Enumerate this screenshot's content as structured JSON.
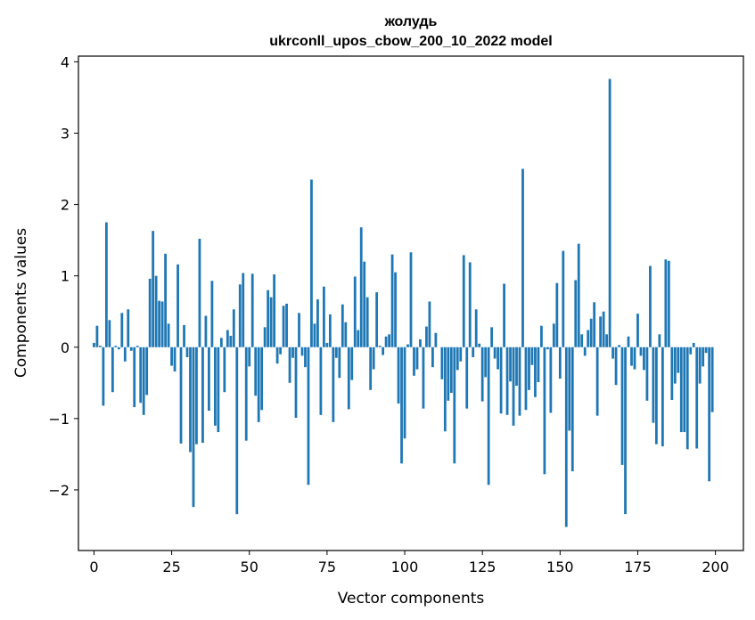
{
  "chart_data": {
    "type": "bar",
    "title": "жолудь",
    "subtitle": "ukrconll_upos_cbow_200_10_2022 model",
    "xlabel": "Vector components",
    "ylabel": "Components values",
    "xlim": [
      -5,
      209
    ],
    "ylim": [
      -2.85,
      4.08
    ],
    "xticks": [
      0,
      25,
      50,
      75,
      100,
      125,
      150,
      175,
      200
    ],
    "yticks": [
      -2,
      -1,
      0,
      1,
      2,
      3,
      4
    ],
    "bar_color": "#1f77b4",
    "values": [
      0.06,
      0.3,
      0.02,
      -0.82,
      1.75,
      0.38,
      -0.63,
      0.02,
      -0.03,
      0.48,
      -0.2,
      0.53,
      -0.05,
      -0.84,
      0.02,
      -0.78,
      -0.95,
      -0.67,
      0.96,
      1.63,
      1.0,
      0.65,
      0.64,
      1.31,
      0.33,
      -0.26,
      -0.34,
      1.16,
      -1.35,
      0.31,
      -0.14,
      -1.47,
      -2.24,
      -1.36,
      1.52,
      -1.34,
      0.44,
      -0.89,
      0.93,
      -1.1,
      -1.19,
      0.13,
      -0.63,
      0.24,
      0.16,
      0.53,
      -2.34,
      0.88,
      1.04,
      -1.31,
      -0.27,
      1.03,
      -0.68,
      -1.05,
      -0.88,
      0.28,
      0.8,
      0.7,
      1.02,
      -0.23,
      -0.1,
      0.58,
      0.61,
      -0.5,
      -0.15,
      -0.99,
      0.48,
      -0.12,
      -0.28,
      -1.93,
      2.35,
      0.33,
      0.67,
      -0.95,
      0.85,
      0.06,
      0.46,
      -1.05,
      -0.15,
      -0.43,
      0.6,
      0.35,
      -0.87,
      -0.46,
      0.99,
      0.24,
      1.68,
      1.2,
      0.7,
      -0.6,
      -0.31,
      0.77,
      0.02,
      -0.11,
      0.15,
      0.18,
      1.3,
      1.05,
      -0.79,
      -1.63,
      -1.28,
      0.04,
      1.33,
      -0.4,
      -0.31,
      0.11,
      -0.86,
      0.29,
      0.64,
      -0.28,
      0.2,
      0.0,
      -0.45,
      -1.18,
      -0.75,
      -0.64,
      -1.63,
      -0.32,
      -0.2,
      1.29,
      -0.86,
      1.19,
      -0.14,
      0.53,
      0.05,
      -0.76,
      -0.42,
      -1.93,
      0.28,
      -0.16,
      -0.31,
      -0.93,
      0.89,
      -0.95,
      -0.48,
      -1.1,
      -0.54,
      -0.96,
      2.5,
      -0.88,
      -0.6,
      -0.25,
      -0.7,
      -0.49,
      0.3,
      -1.78,
      -0.03,
      -0.92,
      0.33,
      0.9,
      -0.44,
      1.35,
      -2.52,
      -1.17,
      -1.74,
      0.94,
      1.45,
      0.18,
      -0.12,
      0.24,
      0.4,
      0.63,
      -0.96,
      0.43,
      0.5,
      0.18,
      3.76,
      -0.16,
      -0.53,
      0.03,
      -1.65,
      -2.34,
      0.15,
      -0.26,
      -0.31,
      0.47,
      -0.12,
      -0.32,
      -0.75,
      1.14,
      -1.06,
      -1.36,
      0.18,
      -1.39,
      1.23,
      1.21,
      -0.74,
      -0.51,
      -0.36,
      -1.19,
      -1.19,
      -1.43,
      -0.1,
      0.06,
      -1.42,
      -0.51,
      -0.27,
      -0.08,
      -1.88,
      -0.91
    ]
  }
}
